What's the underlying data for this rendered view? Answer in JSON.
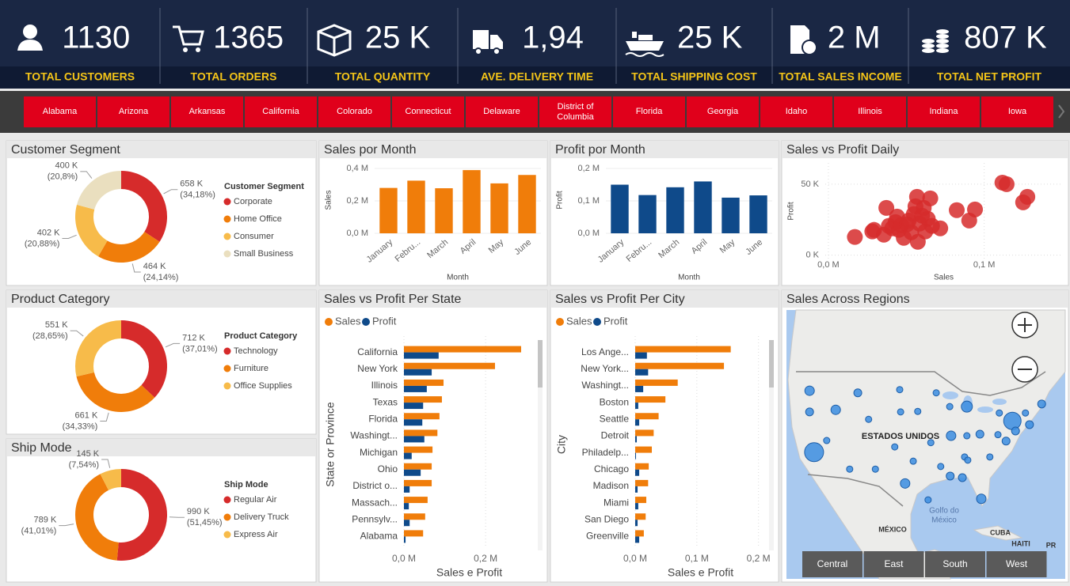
{
  "kpis": [
    {
      "label": "TOTAL CUSTOMERS",
      "value": "1130"
    },
    {
      "label": "TOTAL ORDERS",
      "value": "1365"
    },
    {
      "label": "TOTAL QUANTITY",
      "value": "25 K"
    },
    {
      "label": "AVE. DELIVERY TIME",
      "value": "1,94"
    },
    {
      "label": "TOTAL SHIPPING COST",
      "value": "25 K"
    },
    {
      "label": "TOTAL SALES INCOME",
      "value": "2 M"
    },
    {
      "label": "TOTAL NET PROFIT",
      "value": "807 K"
    }
  ],
  "states": [
    "Alabama",
    "Arizona",
    "Arkansas",
    "California",
    "Colorado",
    "Connecticut",
    "Delaware",
    "District of Columbia",
    "Florida",
    "Georgia",
    "Idaho",
    "Illinois",
    "Indiana",
    "Iowa"
  ],
  "chart_data": [
    {
      "type": "donut",
      "title": "Customer Segment",
      "legend_title": "Customer Segment",
      "categories": [
        "Corporate",
        "Home Office",
        "Consumer",
        "Small Business"
      ],
      "values": [
        658000,
        464000,
        402000,
        400000
      ],
      "value_labels": [
        "658 K",
        "464 K",
        "402 K",
        "400 K"
      ],
      "percent_labels": [
        "(34,18%)",
        "(24,14%)",
        "(20,88%)",
        "(20,8%)"
      ],
      "colors": [
        "#d62b2b",
        "#f07d0a",
        "#f7bb4a",
        "#eadfbf"
      ]
    },
    {
      "type": "donut",
      "title": "Product Category",
      "legend_title": "Product Category",
      "categories": [
        "Technology",
        "Furniture",
        "Office Supplies"
      ],
      "values": [
        712000,
        661000,
        551000
      ],
      "value_labels": [
        "712 K",
        "661 K",
        "551 K"
      ],
      "percent_labels": [
        "(37,01%)",
        "(34,33%)",
        "(28,65%)"
      ],
      "colors": [
        "#d62b2b",
        "#f07d0a",
        "#f7bb4a"
      ]
    },
    {
      "type": "donut",
      "title": "Ship Mode",
      "legend_title": "Ship Mode",
      "categories": [
        "Regular Air",
        "Delivery Truck",
        "Express Air"
      ],
      "values": [
        990000,
        789000,
        145000
      ],
      "value_labels": [
        "990 K",
        "789 K",
        "145 K"
      ],
      "percent_labels": [
        "(51,45%)",
        "(41,01%)",
        "(7,54%)"
      ],
      "colors": [
        "#d62b2b",
        "#f07d0a",
        "#f7bb4a"
      ]
    },
    {
      "type": "bar",
      "title": "Sales por Month",
      "x_label": "Month",
      "y_label": "Sales",
      "categories": [
        "January",
        "Febru...",
        "March",
        "April",
        "May",
        "June"
      ],
      "values": [
        280000,
        325000,
        278000,
        390000,
        308000,
        360000
      ],
      "color": "#f07d0a",
      "ylim": [
        0,
        410000
      ],
      "yticks": [
        {
          "value": 0,
          "label": "0,0 M"
        },
        {
          "value": 200000,
          "label": "0,2 M"
        },
        {
          "value": 400000,
          "label": "0,4 M"
        }
      ]
    },
    {
      "type": "bar",
      "title": "Profit por Month",
      "x_label": "Month",
      "y_label": "Profit",
      "categories": [
        "January",
        "Febru...",
        "March",
        "April",
        "May",
        "June"
      ],
      "values": [
        150000,
        118000,
        142000,
        160000,
        110000,
        117000
      ],
      "color": "#0f4a8a",
      "ylim": [
        0,
        205000
      ],
      "yticks": [
        {
          "value": 0,
          "label": "0,0 M"
        },
        {
          "value": 100000,
          "label": "0,1 M"
        },
        {
          "value": 200000,
          "label": "0,2 M"
        }
      ]
    },
    {
      "type": "scatter",
      "title": "Sales vs Profit Daily",
      "x_label": "Sales",
      "y_label": "Profit",
      "color": "#d62b2b",
      "x": [
        17000,
        28200,
        29300,
        35600,
        37200,
        38800,
        41000,
        43100,
        44100,
        45200,
        46800,
        48400,
        50500,
        51600,
        53200,
        54800,
        55900,
        56900,
        57400,
        58500,
        60100,
        61200,
        62200,
        63800,
        65400,
        66500,
        71800,
        82400,
        90400,
        94100,
        111700,
        114400,
        125000,
        127700
      ],
      "y": [
        12800,
        16700,
        17800,
        14400,
        33300,
        20600,
        18900,
        23300,
        27200,
        17800,
        21100,
        12200,
        21700,
        24400,
        16100,
        28900,
        34400,
        41100,
        9400,
        22200,
        27800,
        33300,
        16700,
        25600,
        40000,
        20600,
        18900,
        31700,
        24400,
        32200,
        51100,
        50000,
        37200,
        41100
      ],
      "xlim": [
        -2000,
        150000
      ],
      "ylim": [
        -3000,
        65000
      ],
      "xticks": [
        {
          "value": 0,
          "label": "0,0 M"
        },
        {
          "value": 100000,
          "label": "0,1 M"
        }
      ],
      "yticks": [
        {
          "value": 0,
          "label": "0 K"
        },
        {
          "value": 50000,
          "label": "50 K"
        }
      ]
    },
    {
      "type": "hbar",
      "title": "Sales vs Profit Per State",
      "x_label": "Sales e Profit",
      "y_label": "State or Province",
      "categories": [
        "California",
        "New York",
        "Illinois",
        "Texas",
        "Florida",
        "Washingt...",
        "Michigan",
        "Ohio",
        "District o...",
        "Massach...",
        "Pennsylv...",
        "Alabama"
      ],
      "series": [
        {
          "name": "Sales",
          "color": "#f07d0a",
          "values": [
            287000,
            223000,
            97000,
            93000,
            87000,
            82000,
            70000,
            68000,
            68000,
            58000,
            52000,
            47000
          ]
        },
        {
          "name": "Profit",
          "color": "#0f4a8a",
          "values": [
            85000,
            68000,
            56000,
            47000,
            45000,
            50000,
            19000,
            41000,
            14000,
            12000,
            14000,
            4000
          ]
        }
      ],
      "xlim": [
        0,
        320000
      ],
      "xticks": [
        {
          "value": 0,
          "label": "0,0 M"
        },
        {
          "value": 200000,
          "label": "0,2 M"
        }
      ]
    },
    {
      "type": "hbar",
      "title": "Sales vs Profit Per City",
      "x_label": "Sales e Profit",
      "y_label": "City",
      "categories": [
        "Los Ange...",
        "New York...",
        "Washingt...",
        "Boston",
        "Seattle",
        "Detroit",
        "Philadelp...",
        "Chicago",
        "Madison",
        "Miami",
        "San Diego",
        "Greenville"
      ],
      "series": [
        {
          "name": "Sales",
          "color": "#f07d0a",
          "values": [
            155000,
            144000,
            69000,
            49000,
            38000,
            30000,
            27000,
            22000,
            21000,
            18000,
            17000,
            14000
          ]
        },
        {
          "name": "Profit",
          "color": "#0f4a8a",
          "values": [
            19000,
            21000,
            13000,
            5000,
            6500,
            2600,
            1300,
            6500,
            3900,
            5000,
            3900,
            6500
          ]
        }
      ],
      "xlim": [
        0,
        212000
      ],
      "xticks": [
        {
          "value": 0,
          "label": "0,0 M"
        },
        {
          "value": 100000,
          "label": "0,1 M"
        },
        {
          "value": 200000,
          "label": "0,2 M"
        }
      ]
    },
    {
      "type": "map",
      "title": "Sales Across Regions",
      "place_labels": [
        "ESTADOS UNIDOS",
        "Golfo do",
        "México",
        "MÉXICO",
        "CUBA",
        "HAITI",
        "PR"
      ],
      "color": "#3b8de0",
      "lon": [
        -121.1,
        -110.4,
        -101.1,
        -93.0,
        -121.1,
        -115.3,
        -108.0,
        -100.9,
        -97.1,
        -90.0,
        -86.2,
        -79.0,
        -73.2,
        -69.6,
        -76.1,
        -72.3,
        -120.1,
        -117.3,
        -112.2,
        -106.5,
        -102.2,
        -98.1,
        -94.2,
        -89.7,
        -86.2,
        -83.3,
        -79.3,
        -77.5,
        -75.4,
        -86.7,
        -81.1,
        -92.0,
        -89.9,
        -87.2,
        -99.9,
        -83.0,
        -86.0,
        -94.8
      ],
      "lat": [
        46.9,
        46.5,
        47.1,
        46.5,
        42.9,
        43.3,
        41.5,
        42.9,
        43.0,
        43.9,
        43.9,
        42.7,
        42.7,
        44.4,
        41.2,
        40.5,
        35.3,
        37.5,
        32.1,
        32.1,
        36.3,
        33.6,
        37.1,
        38.4,
        38.4,
        38.7,
        38.6,
        37.4,
        39.3,
        34.4,
        34.4,
        32.6,
        30.8,
        30.5,
        29.4,
        26.5,
        33.8,
        26.3
      ],
      "values": [
        36000,
        25000,
        16000,
        16000,
        25000,
        36000,
        16000,
        16000,
        16000,
        16000,
        49000,
        16000,
        16000,
        25000,
        121000,
        25000,
        144000,
        16000,
        16000,
        16000,
        16000,
        16000,
        16000,
        36000,
        16000,
        25000,
        16000,
        25000,
        25000,
        16000,
        16000,
        16000,
        25000,
        25000,
        36000,
        36000,
        16000,
        16000
      ],
      "regions": [
        "Central",
        "East",
        "South",
        "West"
      ]
    }
  ]
}
